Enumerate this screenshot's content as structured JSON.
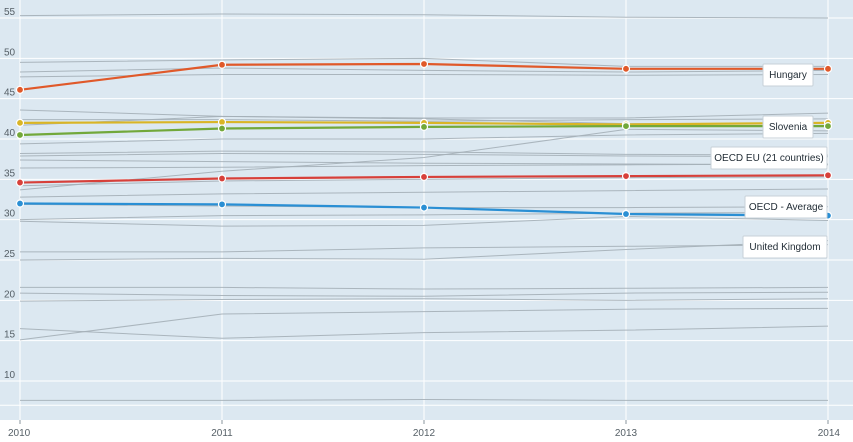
{
  "chart_data": {
    "type": "line",
    "x": [
      "2010",
      "2011",
      "2012",
      "2013",
      "2014"
    ],
    "ylim": [
      7,
      57
    ],
    "yticks": [
      10,
      15,
      20,
      25,
      30,
      35,
      40,
      45,
      50,
      55
    ],
    "grid": true,
    "highlighted_series": [
      {
        "name": "Hungary",
        "color": "#e0592a",
        "values": [
          46.1,
          49.2,
          49.3,
          48.7,
          48.7
        ]
      },
      {
        "name": "Slovenia",
        "color": "#d9b526",
        "values": [
          42.0,
          42.1,
          42.0,
          41.8,
          42.0
        ]
      },
      {
        "name": "OECD EU (21 countries)",
        "color": "#72a83a",
        "values": [
          40.5,
          41.3,
          41.5,
          41.6,
          41.6
        ]
      },
      {
        "name": "OECD - Average",
        "color": "#d7403a",
        "values": [
          34.6,
          35.1,
          35.3,
          35.4,
          35.5
        ]
      },
      {
        "name": "United Kingdom",
        "color": "#2a8fd4",
        "values": [
          32.0,
          31.9,
          31.5,
          30.7,
          30.5
        ]
      }
    ],
    "background_series": [
      [
        55.3,
        55.5,
        55.4,
        55.1,
        55.0
      ],
      [
        49.5,
        49.8,
        50.0,
        49.0,
        49.0
      ],
      [
        48.3,
        48.8,
        48.5,
        48.3,
        48.5
      ],
      [
        47.7,
        48.0,
        48.0,
        47.9,
        48.0
      ],
      [
        43.6,
        42.8,
        42.6,
        42.6,
        43.2
      ],
      [
        42.4,
        42.4,
        42.2,
        42.4,
        42.5
      ],
      [
        41.7,
        42.8,
        42.5,
        41.9,
        41.9
      ],
      [
        39.4,
        40.0,
        40.0,
        40.5,
        40.7
      ],
      [
        38.2,
        38.5,
        38.4,
        38.1,
        38.0
      ],
      [
        37.9,
        38.2,
        38.1,
        37.9,
        37.8
      ],
      [
        37.4,
        37.2,
        37.0,
        36.9,
        36.8
      ],
      [
        36.4,
        36.5,
        36.7,
        36.8,
        36.9
      ],
      [
        34.2,
        34.8,
        35.0,
        35.2,
        35.3
      ],
      [
        33.7,
        36.0,
        37.7,
        41.2,
        41.0
      ],
      [
        32.8,
        33.2,
        33.4,
        33.6,
        33.8
      ],
      [
        31.9,
        31.7,
        31.5,
        31.5,
        31.6
      ],
      [
        30.0,
        30.5,
        30.6,
        30.8,
        30.9
      ],
      [
        29.8,
        29.2,
        29.3,
        30.4,
        29.9
      ],
      [
        26.0,
        26.0,
        26.5,
        26.7,
        26.9
      ],
      [
        25.0,
        25.2,
        25.1,
        26.3,
        27.4
      ],
      [
        21.6,
        21.6,
        21.4,
        21.5,
        21.6
      ],
      [
        20.9,
        20.6,
        20.5,
        20.9,
        21.0
      ],
      [
        19.9,
        20.1,
        20.2,
        20.0,
        20.2
      ],
      [
        16.5,
        15.3,
        16.0,
        16.3,
        16.8
      ],
      [
        15.1,
        18.3,
        18.6,
        18.9,
        19.0
      ],
      [
        7.6,
        7.6,
        7.7,
        7.6,
        7.6
      ]
    ]
  }
}
